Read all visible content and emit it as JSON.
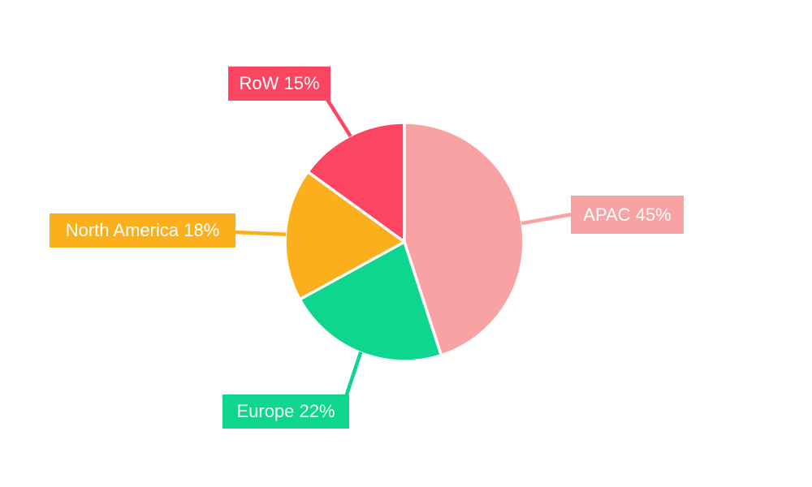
{
  "chart_data": {
    "type": "pie",
    "title": "",
    "unit": "%",
    "start_angle": "top",
    "direction": "clockwise",
    "legend_position": "callout-labels-with-leader-lines",
    "background": "#FFFFFF",
    "categories": [
      "APAC",
      "Europe",
      "North America",
      "RoW"
    ],
    "values": [
      45,
      22,
      18,
      15
    ],
    "slices": [
      {
        "label": "APAC",
        "value": 45,
        "display": "APAC 45%",
        "color": "#F8A2A4"
      },
      {
        "label": "Europe",
        "value": 22,
        "display": "Europe 22%",
        "color": "#0ED68F"
      },
      {
        "label": "North America",
        "value": 18,
        "display": "North America 18%",
        "color": "#FCAF1C"
      },
      {
        "label": "RoW",
        "value": 15,
        "display": "RoW 15%",
        "color": "#FC4560"
      }
    ]
  }
}
